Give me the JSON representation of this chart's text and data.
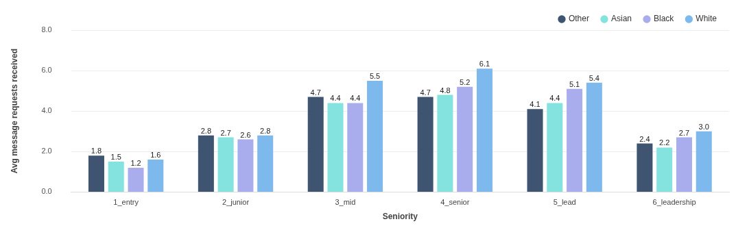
{
  "chart_data": {
    "type": "bar",
    "xlabel": "Seniority",
    "ylabel": "Avg message requests received",
    "categories": [
      "1_entry",
      "2_junior",
      "3_mid",
      "4_senior",
      "5_lead",
      "6_leadership"
    ],
    "series": [
      {
        "name": "Other",
        "color": "#3f5470",
        "values": [
          1.8,
          2.8,
          4.7,
          4.7,
          4.1,
          2.4
        ],
        "value_labels": [
          "1.8",
          "2.8",
          "4.7",
          "4.7",
          "4.1",
          "2.4"
        ]
      },
      {
        "name": "Asian",
        "color": "#84e3de",
        "values": [
          1.5,
          2.7,
          4.4,
          4.8,
          4.4,
          2.2
        ],
        "value_labels": [
          "1.5",
          "2.7",
          "4.4",
          "4.8",
          "4.4",
          "2.2"
        ]
      },
      {
        "name": "Black",
        "color": "#a9adee",
        "values": [
          1.2,
          2.6,
          4.4,
          5.2,
          5.1,
          2.7
        ],
        "value_labels": [
          "1.2",
          "2.6",
          "4.4",
          "5.2",
          "5.1",
          "2.7"
        ]
      },
      {
        "name": "White",
        "color": "#7db9ec",
        "values": [
          1.6,
          2.8,
          5.5,
          6.1,
          5.4,
          3.0
        ],
        "value_labels": [
          "1.6",
          "2.8",
          "5.5",
          "6.1",
          "5.4",
          "3.0"
        ]
      }
    ],
    "ylim": [
      0,
      8
    ],
    "yticks": [
      {
        "value": 0,
        "label": "0.0"
      },
      {
        "value": 2,
        "label": "2.0"
      },
      {
        "value": 4,
        "label": "4.0"
      },
      {
        "value": 6,
        "label": "6.0"
      },
      {
        "value": 8,
        "label": "8.0"
      }
    ],
    "grid": "y",
    "legend": "top right",
    "marker": "circle"
  }
}
